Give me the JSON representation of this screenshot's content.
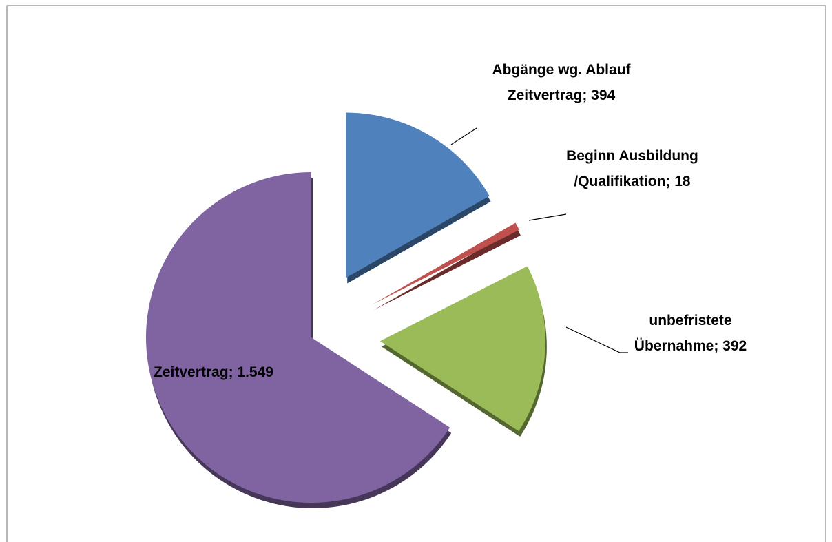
{
  "chart_data": {
    "type": "pie",
    "values": [
      394,
      18,
      392,
      1549
    ],
    "value_labels": [
      "Abgänge wg. Ablauf Zeitvertrag; 394",
      "Beginn Ausbildung /Qualifikation; 18",
      "unbefristete Übernahme; 392",
      "Zeitvertrag; 1.549"
    ],
    "colors": [
      "#4f81bd",
      "#c0504d",
      "#9bbb59",
      "#8064a2"
    ],
    "exploded": [
      true,
      true,
      true,
      false
    ]
  }
}
